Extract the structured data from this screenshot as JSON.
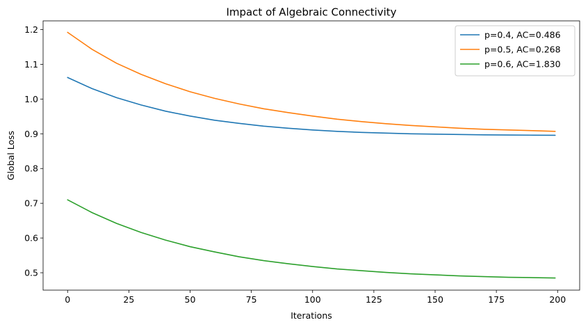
{
  "chart_data": {
    "type": "line",
    "title": "Impact of Algebraic Connectivity",
    "xlabel": "Iterations",
    "ylabel": "Global Loss",
    "xlim": [
      -10,
      209
    ],
    "ylim": [
      0.45,
      1.225
    ],
    "xticks": [
      0,
      25,
      50,
      75,
      100,
      125,
      150,
      175,
      200
    ],
    "yticks": [
      0.5,
      0.6,
      0.7,
      0.8,
      0.9,
      1.0,
      1.1,
      1.2
    ],
    "ytick_labels": [
      "0.5",
      "0.6",
      "0.7",
      "0.8",
      "0.9",
      "1.0",
      "1.1",
      "1.2"
    ],
    "grid": false,
    "legend_position": "top-right",
    "series": [
      {
        "name": "p=0.4, AC=0.486",
        "color": "#1f77b4",
        "x": [
          0,
          10,
          20,
          30,
          40,
          50,
          60,
          70,
          80,
          90,
          100,
          110,
          120,
          130,
          140,
          150,
          160,
          170,
          180,
          190,
          199
        ],
        "y": [
          1.062,
          1.03,
          1.004,
          0.983,
          0.965,
          0.951,
          0.939,
          0.93,
          0.922,
          0.916,
          0.911,
          0.907,
          0.904,
          0.902,
          0.9,
          0.899,
          0.898,
          0.897,
          0.8965,
          0.896,
          0.8957
        ]
      },
      {
        "name": "p=0.5, AC=0.268",
        "color": "#ff7f0e",
        "x": [
          0,
          10,
          20,
          30,
          40,
          50,
          60,
          70,
          80,
          90,
          100,
          110,
          120,
          130,
          140,
          150,
          160,
          170,
          180,
          190,
          199
        ],
        "y": [
          1.192,
          1.143,
          1.103,
          1.071,
          1.044,
          1.021,
          1.002,
          0.986,
          0.972,
          0.961,
          0.951,
          0.942,
          0.935,
          0.929,
          0.924,
          0.92,
          0.916,
          0.913,
          0.911,
          0.909,
          0.907
        ]
      },
      {
        "name": "p=0.6, AC=1.830",
        "color": "#2ca02c",
        "x": [
          0,
          10,
          20,
          30,
          40,
          50,
          60,
          70,
          80,
          90,
          100,
          110,
          120,
          130,
          140,
          150,
          160,
          170,
          180,
          190,
          199
        ],
        "y": [
          0.71,
          0.673,
          0.642,
          0.616,
          0.594,
          0.575,
          0.56,
          0.546,
          0.535,
          0.526,
          0.518,
          0.511,
          0.506,
          0.501,
          0.497,
          0.494,
          0.491,
          0.489,
          0.487,
          0.486,
          0.485
        ]
      }
    ]
  }
}
